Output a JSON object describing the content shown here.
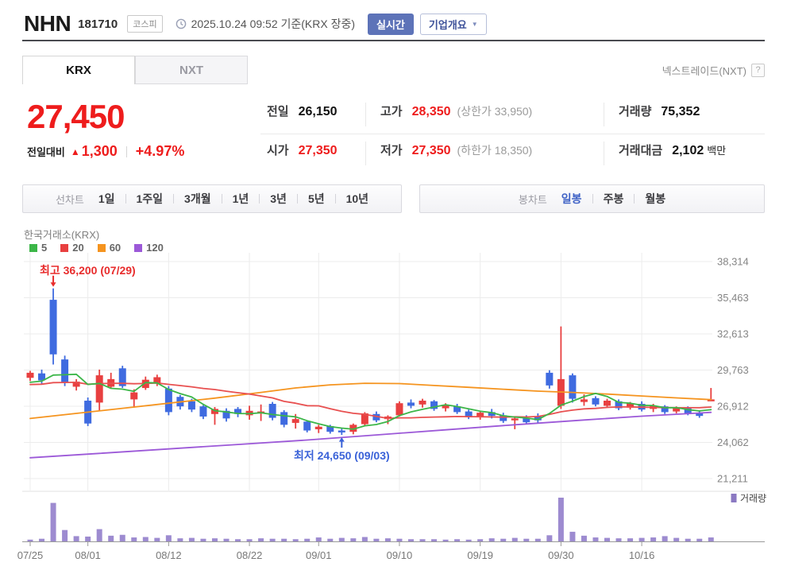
{
  "header": {
    "title": "NHN",
    "code": "181710",
    "market_badge": "코스피",
    "timestamp": "2025.10.24 09:52 기준(KRX 장중)",
    "realtime_button": "실시간",
    "overview_button": "기업개요",
    "overview_arrow": "▼"
  },
  "tabs": {
    "krx": "KRX",
    "nxt": "NXT",
    "nxt_info": "넥스트레이드(NXT)",
    "help": "?"
  },
  "price": {
    "current": "27,450",
    "change_label": "전일대비",
    "change_arrow": "▲",
    "change": "1,300",
    "change_pct": "+4.97%"
  },
  "stats": {
    "prev": {
      "label": "전일",
      "value": "26,150"
    },
    "high": {
      "label": "고가",
      "value": "28,350",
      "extra": "(상한가 33,950)"
    },
    "volume": {
      "label": "거래량",
      "value": "75,352"
    },
    "open": {
      "label": "시가",
      "value": "27,350"
    },
    "low": {
      "label": "저가",
      "value": "27,350",
      "extra": "(하한가 18,350)"
    },
    "tr_value": {
      "label": "거래대금",
      "value": "2,102",
      "unit": "백만"
    }
  },
  "toolbar": {
    "line_label": "선차트",
    "periods": [
      "1일",
      "1주일",
      "3개월",
      "1년",
      "3년",
      "5년",
      "10년"
    ],
    "candle_label": "봉차트",
    "candle_periods": [
      "일봉",
      "주봉",
      "월봉"
    ],
    "active_candle": "일봉"
  },
  "chart_data": {
    "type": "candlestick",
    "title": "한국거래소(KRX)",
    "ma_legend": [
      {
        "period": "5",
        "color": "#3cb648"
      },
      {
        "period": "20",
        "color": "#e84040"
      },
      {
        "period": "60",
        "color": "#f5941f"
      },
      {
        "period": "120",
        "color": "#9c59d8"
      }
    ],
    "y_axis": [
      38314,
      35463,
      32613,
      29763,
      26912,
      24062,
      21211
    ],
    "x_ticks": [
      {
        "index": 0,
        "label": "07/25"
      },
      {
        "index": 5,
        "label": "08/01"
      },
      {
        "index": 12,
        "label": "08/12"
      },
      {
        "index": 19,
        "label": "08/22"
      },
      {
        "index": 25,
        "label": "09/01"
      },
      {
        "index": 32,
        "label": "09/10"
      },
      {
        "index": 39,
        "label": "09/19"
      },
      {
        "index": 46,
        "label": "09/30"
      },
      {
        "index": 53,
        "label": "10/16"
      }
    ],
    "candles": [
      [
        29150,
        29700,
        28900,
        29550,
        4
      ],
      [
        29500,
        29800,
        28700,
        28950,
        6
      ],
      [
        35300,
        36200,
        30200,
        31000,
        88
      ],
      [
        30600,
        30900,
        28500,
        28800,
        26
      ],
      [
        28450,
        29050,
        28150,
        28850,
        12
      ],
      [
        27350,
        27600,
        25350,
        25550,
        11
      ],
      [
        27200,
        29800,
        26600,
        29350,
        28
      ],
      [
        28450,
        29550,
        28300,
        29050,
        13
      ],
      [
        29900,
        30100,
        28350,
        28500,
        15
      ],
      [
        27450,
        28250,
        26800,
        28000,
        9
      ],
      [
        28350,
        29250,
        28200,
        29000,
        10
      ],
      [
        28700,
        29400,
        28500,
        29200,
        8
      ],
      [
        28300,
        28500,
        26200,
        26450,
        14
      ],
      [
        27650,
        27800,
        26650,
        26900,
        7
      ],
      [
        27300,
        27500,
        26450,
        26650,
        8
      ],
      [
        26900,
        27000,
        25900,
        26100,
        6
      ],
      [
        26300,
        26850,
        25450,
        26700,
        7
      ],
      [
        26550,
        26750,
        25700,
        25950,
        6
      ],
      [
        26700,
        26850,
        26050,
        26300,
        5
      ],
      [
        26200,
        26950,
        25850,
        26550,
        5
      ],
      [
        26350,
        27050,
        25750,
        26500,
        7
      ],
      [
        27100,
        27250,
        25800,
        26000,
        6
      ],
      [
        26450,
        26600,
        25250,
        25450,
        6
      ],
      [
        25600,
        26300,
        25150,
        25900,
        5
      ],
      [
        25700,
        25800,
        24850,
        25000,
        6
      ],
      [
        25100,
        25450,
        24800,
        25300,
        9
      ],
      [
        25350,
        25450,
        24750,
        24900,
        6
      ],
      [
        25000,
        25150,
        24650,
        24850,
        8
      ],
      [
        24900,
        25550,
        24700,
        25450,
        7
      ],
      [
        25500,
        26450,
        25350,
        26350,
        10
      ],
      [
        26300,
        26500,
        25650,
        25800,
        6
      ],
      [
        25900,
        26200,
        25500,
        26100,
        7
      ],
      [
        26200,
        27300,
        26100,
        27150,
        6
      ],
      [
        27200,
        27450,
        26750,
        26950,
        5
      ],
      [
        27050,
        27500,
        26800,
        27350,
        5
      ],
      [
        27300,
        27400,
        26550,
        26700,
        5
      ],
      [
        26750,
        27150,
        26500,
        27000,
        4
      ],
      [
        26900,
        27100,
        26300,
        26450,
        5
      ],
      [
        26500,
        26650,
        25900,
        26050,
        4
      ],
      [
        26100,
        26500,
        25850,
        26400,
        5
      ],
      [
        26450,
        26700,
        25950,
        26150,
        7
      ],
      [
        26200,
        26400,
        25600,
        25750,
        6
      ],
      [
        25850,
        26100,
        25100,
        25950,
        8
      ],
      [
        25950,
        26200,
        25500,
        25650,
        6
      ],
      [
        26100,
        26350,
        25600,
        25800,
        6
      ],
      [
        29550,
        29750,
        28300,
        28550,
        14
      ],
      [
        26950,
        33200,
        26700,
        29050,
        100
      ],
      [
        29350,
        29500,
        27200,
        27500,
        22
      ],
      [
        27250,
        27850,
        26950,
        27450,
        13
      ],
      [
        27550,
        27700,
        26900,
        27050,
        9
      ],
      [
        26950,
        27500,
        26800,
        27350,
        8
      ],
      [
        27300,
        27450,
        26600,
        26750,
        7
      ],
      [
        26800,
        27250,
        26650,
        27150,
        7
      ],
      [
        27100,
        27300,
        26500,
        26650,
        8
      ],
      [
        26700,
        27100,
        26450,
        26950,
        9
      ],
      [
        26900,
        27000,
        26300,
        26450,
        12
      ],
      [
        26500,
        26900,
        26350,
        26800,
        8
      ],
      [
        26750,
        26900,
        26200,
        26350,
        6
      ],
      [
        26400,
        26550,
        26000,
        26150,
        6
      ],
      [
        27350,
        28350,
        27350,
        27450,
        9
      ]
    ],
    "prehistory_closes": [
      28500,
      28450,
      28550,
      28500,
      28600,
      28550,
      28450,
      28500,
      28600,
      28650,
      28550,
      28500,
      28600,
      28700,
      28650,
      28600,
      28500,
      28600,
      28700,
      28650
    ],
    "ma60_points": [
      [
        0,
        25950
      ],
      [
        4,
        26350
      ],
      [
        8,
        26750
      ],
      [
        12,
        27150
      ],
      [
        16,
        27550
      ],
      [
        20,
        28000
      ],
      [
        23,
        28350
      ],
      [
        26,
        28600
      ],
      [
        29,
        28720
      ],
      [
        32,
        28700
      ],
      [
        35,
        28550
      ],
      [
        38,
        28400
      ],
      [
        41,
        28250
      ],
      [
        44,
        28100
      ],
      [
        47,
        28000
      ],
      [
        50,
        27870
      ],
      [
        53,
        27720
      ],
      [
        56,
        27570
      ],
      [
        59,
        27430
      ]
    ],
    "ma120_points": [
      [
        0,
        22850
      ],
      [
        6,
        23200
      ],
      [
        12,
        23550
      ],
      [
        18,
        23900
      ],
      [
        24,
        24250
      ],
      [
        30,
        24650
      ],
      [
        36,
        25050
      ],
      [
        42,
        25450
      ],
      [
        48,
        25830
      ],
      [
        53,
        26130
      ],
      [
        59,
        26430
      ]
    ],
    "annotations": {
      "high": {
        "index": 2,
        "value": 36200,
        "text": "최고 36,200 (07/29)",
        "color": "#e82c2c"
      },
      "low": {
        "index": 27,
        "value": 24650,
        "text": "최저 24,650 (09/03)",
        "color": "#3a62d8"
      }
    },
    "volume_legend": "거래량",
    "colors": {
      "up": "#e84040",
      "down": "#3f6be0",
      "volume": "#9d8bd0",
      "volume_legend": "#8b79c2",
      "grid": "#ececec",
      "axis_text": "#858585",
      "axis_line": "#9a9a9a",
      "ma5": "#3cb648",
      "ma20": "#e85050",
      "ma60": "#f5941f",
      "ma120": "#9c59d8"
    }
  }
}
